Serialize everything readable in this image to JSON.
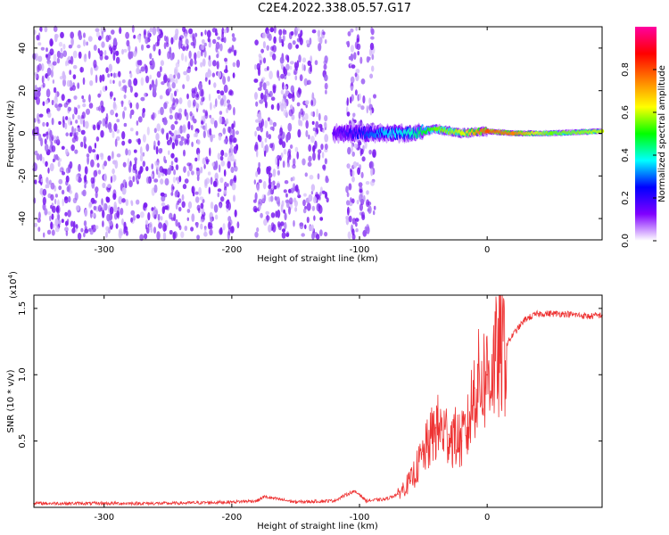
{
  "figure": {
    "title": "C2E4.2022.338.05.57.G17"
  },
  "chart_data": [
    {
      "type": "heatmap",
      "xlabel": "Height of straight line (km)",
      "ylabel": "Frequency (Hz)",
      "xlim": [
        -355,
        90
      ],
      "ylim": [
        -50,
        50
      ],
      "xticks": [
        -300,
        -200,
        -100,
        0
      ],
      "xtick_labels": [
        "-300",
        "-200",
        "-100",
        "0"
      ],
      "yticks": [
        -40,
        -20,
        0,
        20,
        40
      ],
      "ytick_labels": [
        "-40",
        "-20",
        "0",
        "20",
        "40"
      ],
      "colorbar": {
        "label": "Normalized spectral amplitude",
        "range": [
          0.0,
          1.0
        ],
        "ticks": [
          0.0,
          0.2,
          0.4,
          0.6,
          0.8
        ],
        "tick_labels": [
          "0.0",
          "0.2",
          "0.4",
          "0.6",
          "0.8"
        ],
        "colormap": [
          "#ffffff",
          "#8000ff",
          "#0000ff",
          "#00ffff",
          "#00ff00",
          "#ffff00",
          "#ff8000",
          "#ff0000",
          "#ff00a0"
        ]
      },
      "noise_segments": [
        {
          "x": [
            -355,
            -195
          ],
          "amplitude": 0.18
        },
        {
          "x": [
            -182,
            -125
          ],
          "amplitude": 0.15
        },
        {
          "x": [
            -110,
            -88
          ],
          "amplitude": 0.15
        }
      ],
      "signal_ridge": [
        {
          "x": -120,
          "y": 0,
          "amplitude": 0.15
        },
        {
          "x": -80,
          "y": 0,
          "amplitude": 0.35
        },
        {
          "x": -60,
          "y": 0,
          "amplitude": 0.4
        },
        {
          "x": -40,
          "y": 2,
          "amplitude": 0.55
        },
        {
          "x": -20,
          "y": 0,
          "amplitude": 0.6
        },
        {
          "x": 0,
          "y": 1,
          "amplitude": 0.8
        },
        {
          "x": 20,
          "y": 0,
          "amplitude": 0.75
        },
        {
          "x": 50,
          "y": 0,
          "amplitude": 0.55
        },
        {
          "x": 90,
          "y": 1,
          "amplitude": 0.6
        }
      ]
    },
    {
      "type": "line",
      "xlabel": "Height of straight line (km)",
      "ylabel": "SNR (10 * v/v)",
      "y_multiplier": "(x10",
      "y_multiplier_exp": "4",
      "y_multiplier_close": ")",
      "xlim": [
        -355,
        90
      ],
      "ylim": [
        0.0,
        1.6
      ],
      "xticks": [
        -300,
        -200,
        -100,
        0
      ],
      "xtick_labels": [
        "-300",
        "-200",
        "-100",
        "0"
      ],
      "yticks": [
        0.5,
        1.0,
        1.5
      ],
      "ytick_labels": [
        "0.5",
        "1.0",
        "1.5"
      ],
      "series": [
        {
          "color": "#ee3333",
          "x": [
            -355,
            -300,
            -250,
            -200,
            -180,
            -175,
            -150,
            -120,
            -105,
            -100,
            -95,
            -80,
            -70,
            -60,
            -50,
            -40,
            -30,
            -20,
            -15,
            -10,
            0,
            10,
            20,
            30,
            40,
            60,
            80,
            90
          ],
          "y": [
            0.03,
            0.03,
            0.03,
            0.04,
            0.05,
            0.08,
            0.04,
            0.05,
            0.12,
            0.1,
            0.05,
            0.06,
            0.1,
            0.2,
            0.4,
            0.6,
            0.55,
            0.5,
            0.6,
            0.9,
            1.0,
            1.15,
            1.3,
            1.42,
            1.46,
            1.46,
            1.44,
            1.45
          ]
        }
      ]
    }
  ]
}
